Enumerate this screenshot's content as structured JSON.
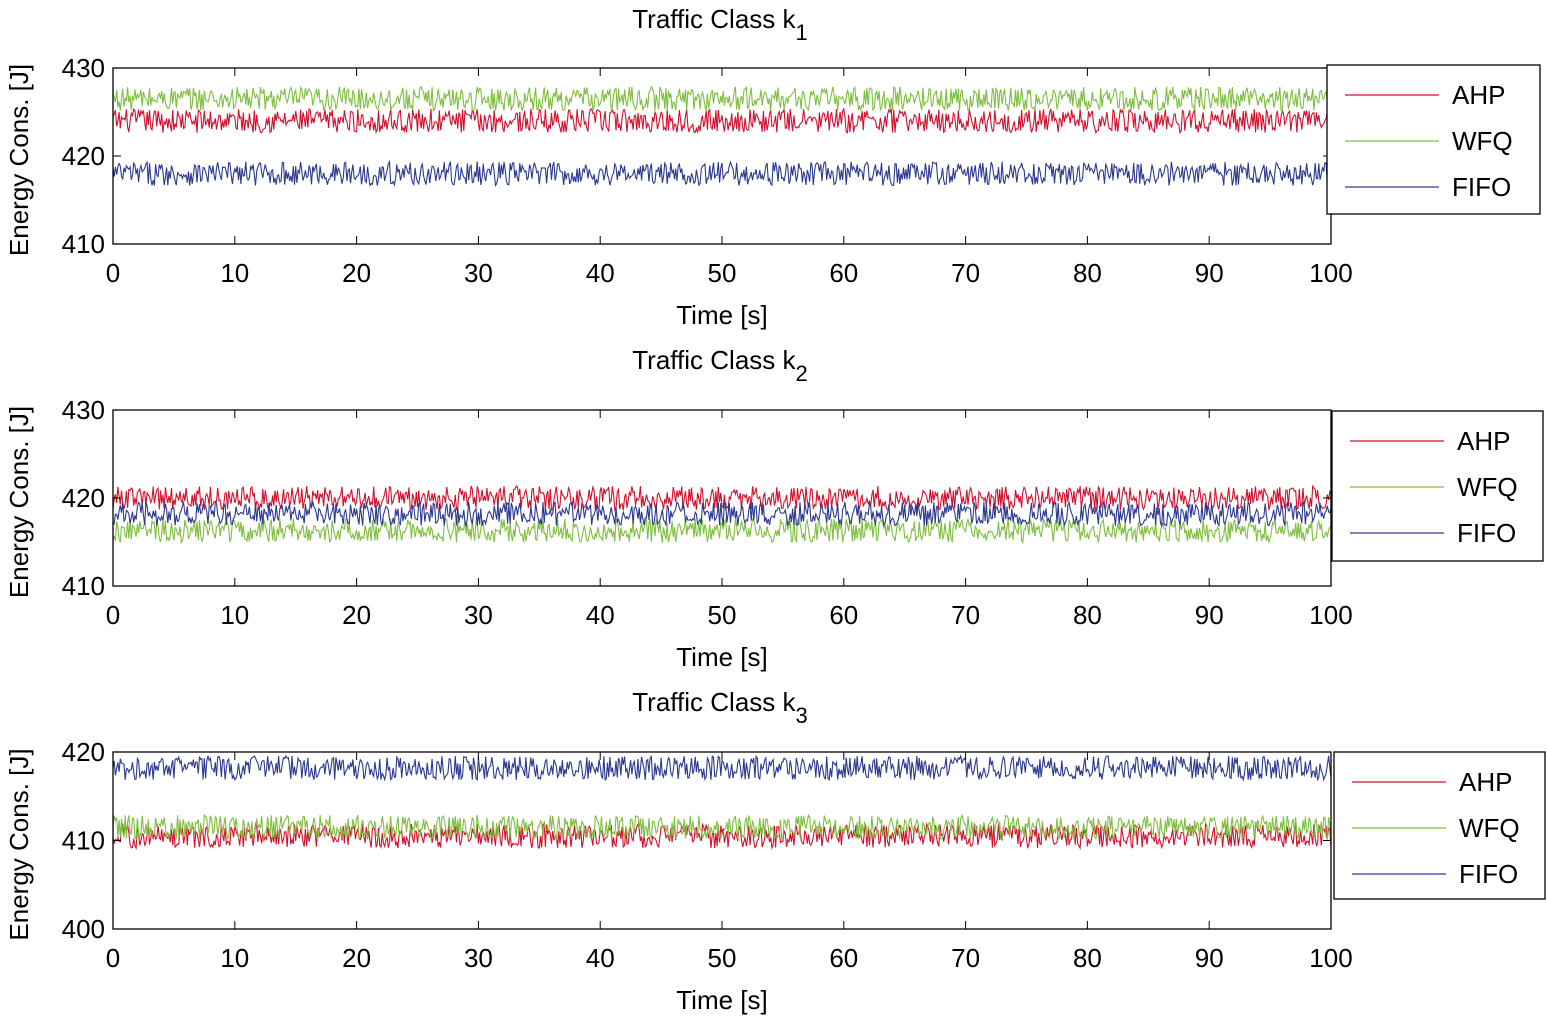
{
  "colors": {
    "AHP": "#d2102e",
    "WFQ": "#7fbf3f",
    "FIFO": "#2b3990"
  },
  "chart_data": [
    {
      "type": "line",
      "title": "Traffic Class k",
      "title_sub": "1",
      "xlabel": "Time [s]",
      "ylabel": "Energy Cons. [J]",
      "xlim": [
        0,
        100
      ],
      "ylim": [
        410,
        430
      ],
      "xticks": [
        0,
        10,
        20,
        30,
        40,
        50,
        60,
        70,
        80,
        90,
        100
      ],
      "yticks": [
        410,
        420,
        430
      ],
      "legend_position": "top-right",
      "grid": false,
      "series": [
        {
          "name": "AHP",
          "mean": 424.0,
          "amplitude": 1.6
        },
        {
          "name": "WFQ",
          "mean": 426.5,
          "amplitude": 1.6
        },
        {
          "name": "FIFO",
          "mean": 418.0,
          "amplitude": 1.6
        }
      ]
    },
    {
      "type": "line",
      "title": "Traffic Class k",
      "title_sub": "2",
      "xlabel": "Time [s]",
      "ylabel": "Energy Cons. [J]",
      "xlim": [
        0,
        100
      ],
      "ylim": [
        410,
        430
      ],
      "xticks": [
        0,
        10,
        20,
        30,
        40,
        50,
        60,
        70,
        80,
        90,
        100
      ],
      "yticks": [
        410,
        420,
        430
      ],
      "legend_position": "top-right",
      "grid": false,
      "series": [
        {
          "name": "AHP",
          "mean": 420.0,
          "amplitude": 1.6
        },
        {
          "name": "WFQ",
          "mean": 416.3,
          "amplitude": 1.6
        },
        {
          "name": "FIFO",
          "mean": 418.2,
          "amplitude": 1.6
        }
      ]
    },
    {
      "type": "line",
      "title": "Traffic Class k",
      "title_sub": "3",
      "xlabel": "Time [s]",
      "ylabel": "Energy Cons. [J]",
      "xlim": [
        0,
        100
      ],
      "ylim": [
        400,
        420
      ],
      "xticks": [
        0,
        10,
        20,
        30,
        40,
        50,
        60,
        70,
        80,
        90,
        100
      ],
      "yticks": [
        400,
        410,
        420
      ],
      "legend_position": "top-right",
      "grid": false,
      "series": [
        {
          "name": "AHP",
          "mean": 410.5,
          "amplitude": 1.6
        },
        {
          "name": "WFQ",
          "mean": 411.5,
          "amplitude": 1.6
        },
        {
          "name": "FIFO",
          "mean": 418.2,
          "amplitude": 1.6
        }
      ]
    }
  ]
}
